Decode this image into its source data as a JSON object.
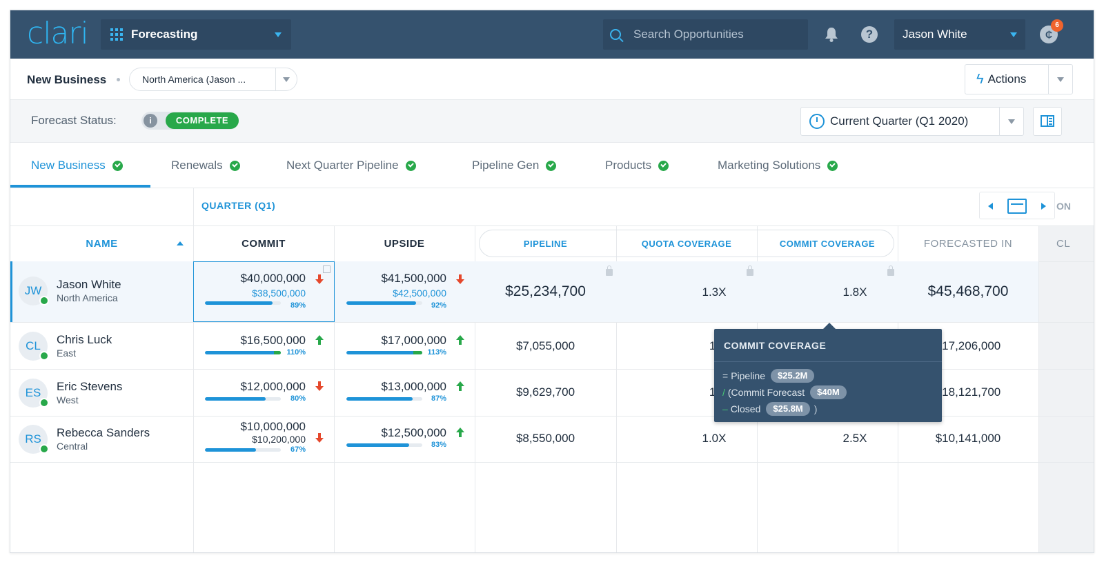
{
  "topnav": {
    "logo": "clari",
    "app_name": "Forecasting",
    "search_placeholder": "Search Opportunities",
    "user_name": "Jason White",
    "chat_badge": "6",
    "chat_glyph": "₵",
    "help_glyph": "?"
  },
  "subhead": {
    "title": "New Business",
    "region": "North America (Jason ...",
    "actions_label": "Actions"
  },
  "status": {
    "label": "Forecast Status:",
    "value": "COMPLETE",
    "info_glyph": "i",
    "period": "Current Quarter (Q1 2020)"
  },
  "tabs": [
    {
      "label": "New Business",
      "active": true
    },
    {
      "label": "Renewals"
    },
    {
      "label": "Next Quarter Pipeline"
    },
    {
      "label": "Pipeline Gen"
    },
    {
      "label": "Products"
    },
    {
      "label": "Marketing Solutions"
    }
  ],
  "grid": {
    "quarter_label": "QUARTER (Q1)",
    "cut_header_top": "ON",
    "cut_header_col": "CL",
    "columns": {
      "name": "NAME",
      "commit": "COMMIT",
      "upside": "UPSIDE",
      "pipeline": "PIPELINE",
      "quota_coverage": "QUOTA COVERAGE",
      "commit_coverage": "COMMIT COVERAGE",
      "forecasted_in": "FORECASTED IN"
    },
    "rows": [
      {
        "initials": "JW",
        "name": "Jason White",
        "region": "North America",
        "commit": "$40,000,000",
        "commit_sub": "$38,500,000",
        "commit_pct": "89%",
        "commit_progress": 0.89,
        "commit_trend": "down",
        "upside": "$41,500,000",
        "upside_sub": "$42,500,000",
        "upside_pct": "92%",
        "upside_progress": 0.92,
        "upside_trend": "down",
        "pipeline": "$25,234,700",
        "quota_coverage": "1.3X",
        "commit_coverage": "1.8X",
        "forecasted_in": "$45,468,700"
      },
      {
        "initials": "CL",
        "name": "Chris Luck",
        "region": "East",
        "commit": "$16,500,000",
        "commit_pct": "110%",
        "commit_progress": 1.1,
        "commit_trend": "up",
        "upside": "$17,000,000",
        "upside_pct": "113%",
        "upside_progress": 1.13,
        "upside_trend": "up",
        "pipeline": "$7,055,000",
        "quota_coverage": "1.",
        "forecasted_in": "$17,206,000"
      },
      {
        "initials": "ES",
        "name": "Eric Stevens",
        "region": "West",
        "commit": "$12,000,000",
        "commit_pct": "80%",
        "commit_progress": 0.8,
        "commit_trend": "down",
        "upside": "$13,000,000",
        "upside_pct": "87%",
        "upside_progress": 0.87,
        "upside_trend": "up",
        "pipeline": "$9,629,700",
        "quota_coverage": "1.",
        "forecasted_in": "$18,121,700"
      },
      {
        "initials": "RS",
        "name": "Rebecca Sanders",
        "region": "Central",
        "commit": "$10,000,000",
        "commit_sub": "$10,200,000",
        "commit_pct": "67%",
        "commit_progress": 0.67,
        "commit_trend": "down",
        "upside": "$12,500,000",
        "upside_pct": "83%",
        "upside_progress": 0.83,
        "upside_trend": "up",
        "pipeline": "$8,550,000",
        "quota_coverage": "1.0X",
        "commit_coverage": "2.5X",
        "forecasted_in": "$10,141,000"
      }
    ]
  },
  "tooltip": {
    "title": "COMMIT COVERAGE",
    "line1_op": "=",
    "line1_label": "Pipeline",
    "line1_value": "$25.2M",
    "line2_op": "/",
    "line2_label": "(Commit Forecast",
    "line2_value": "$40M",
    "line3_op": "–",
    "line3_label": "Closed",
    "line3_value": "$25.8M",
    "line3_close": ")"
  },
  "colors": {
    "nav_bg": "#35526e",
    "accent": "#1e93d8",
    "success": "#28a84a",
    "down_arrow": "#e5482c",
    "up_arrow": "#28a84a"
  }
}
